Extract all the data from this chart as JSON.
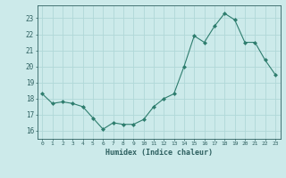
{
  "x": [
    0,
    1,
    2,
    3,
    4,
    5,
    6,
    7,
    8,
    9,
    10,
    11,
    12,
    13,
    14,
    15,
    16,
    17,
    18,
    19,
    20,
    21,
    22,
    23
  ],
  "y": [
    18.3,
    17.7,
    17.8,
    17.7,
    17.5,
    16.8,
    16.1,
    16.5,
    16.4,
    16.4,
    16.7,
    17.5,
    18.0,
    18.3,
    20.0,
    21.9,
    21.5,
    22.5,
    23.3,
    22.9,
    21.5,
    21.5,
    20.4,
    19.5
  ],
  "line_color": "#2e7d6e",
  "marker": "D",
  "marker_size": 2.0,
  "bg_color": "#cceaea",
  "grid_color": "#b0d8d8",
  "xlabel": "Humidex (Indice chaleur)",
  "ylim": [
    15.5,
    23.8
  ],
  "xlim": [
    -0.5,
    23.5
  ],
  "yticks": [
    16,
    17,
    18,
    19,
    20,
    21,
    22,
    23
  ],
  "xticks": [
    0,
    1,
    2,
    3,
    4,
    5,
    6,
    7,
    8,
    9,
    10,
    11,
    12,
    13,
    14,
    15,
    16,
    17,
    18,
    19,
    20,
    21,
    22,
    23
  ],
  "tick_color": "#2e6060",
  "label_color": "#2e6060",
  "spine_color": "#2e6060"
}
